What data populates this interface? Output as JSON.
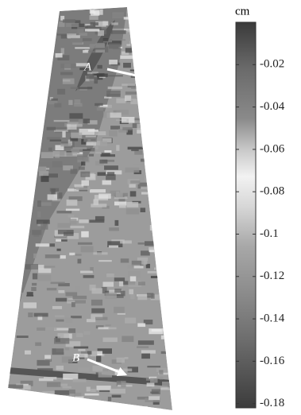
{
  "map": {
    "unit_label": "cm",
    "colorbar": {
      "lim": [
        -0.182,
        0
      ],
      "ticks": [
        -0.02,
        -0.04,
        -0.06,
        -0.08,
        -0.1,
        -0.12,
        -0.14,
        -0.16,
        -0.18
      ]
    },
    "annotations": [
      "A",
      "B"
    ]
  }
}
